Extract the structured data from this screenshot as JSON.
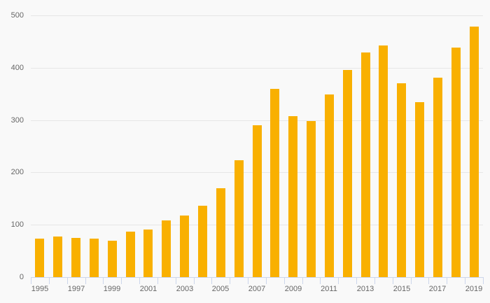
{
  "chart": {
    "background_color": "#f9f9f9",
    "bar_color": "#f9b000",
    "grid_color": "#e6e6e6",
    "axis_color": "#ccd6eb",
    "label_color": "#666666"
  },
  "chart_data": {
    "type": "bar",
    "title": "",
    "xlabel": "",
    "ylabel": "",
    "categories": [
      "1995",
      "1996",
      "1997",
      "1998",
      "1999",
      "2000",
      "2001",
      "2002",
      "2003",
      "2004",
      "2005",
      "2006",
      "2007",
      "2008",
      "2009",
      "2010",
      "2011",
      "2012",
      "2013",
      "2014",
      "2015",
      "2016",
      "2017",
      "2018",
      "2019"
    ],
    "values": [
      73,
      78,
      75,
      74,
      69,
      87,
      91,
      108,
      118,
      136,
      170,
      223,
      290,
      359,
      308,
      298,
      349,
      396,
      429,
      442,
      370,
      334,
      381,
      438,
      479
    ],
    "ylim": [
      0,
      500
    ],
    "yticks": [
      0,
      100,
      200,
      300,
      400,
      500
    ],
    "ytick_labels": [
      "0",
      "100",
      "200",
      "300",
      "400",
      "500"
    ],
    "xtick_label_interval": 2,
    "grid": true,
    "legend": false
  }
}
